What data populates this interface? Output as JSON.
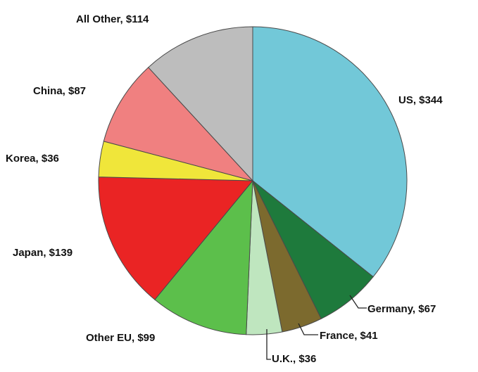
{
  "chart_data": {
    "type": "pie",
    "title": "",
    "start": "12 o'clock",
    "direction": "clockwise",
    "slices": [
      {
        "name": "US",
        "value": 344,
        "label": "US, $344",
        "color": "#72c8d8"
      },
      {
        "name": "Germany",
        "value": 67,
        "label": "Germany, $67",
        "color": "#1e7a3c"
      },
      {
        "name": "France",
        "value": 41,
        "label": "France, $41",
        "color": "#7c6a2e"
      },
      {
        "name": "U.K.",
        "value": 36,
        "label": "U.K., $36",
        "color": "#bfe6bf"
      },
      {
        "name": "Other EU",
        "value": 99,
        "label": "Other EU, $99",
        "color": "#5cbf4b"
      },
      {
        "name": "Japan",
        "value": 139,
        "label": "Japan, $139",
        "color": "#ea2424"
      },
      {
        "name": "Korea",
        "value": 36,
        "label": "Korea, $36",
        "color": "#f0e63a"
      },
      {
        "name": "China",
        "value": 87,
        "label": "China, $87",
        "color": "#f08080"
      },
      {
        "name": "All Other",
        "value": 114,
        "label": "All Other, $114",
        "color": "#bdbdbd"
      }
    ]
  }
}
